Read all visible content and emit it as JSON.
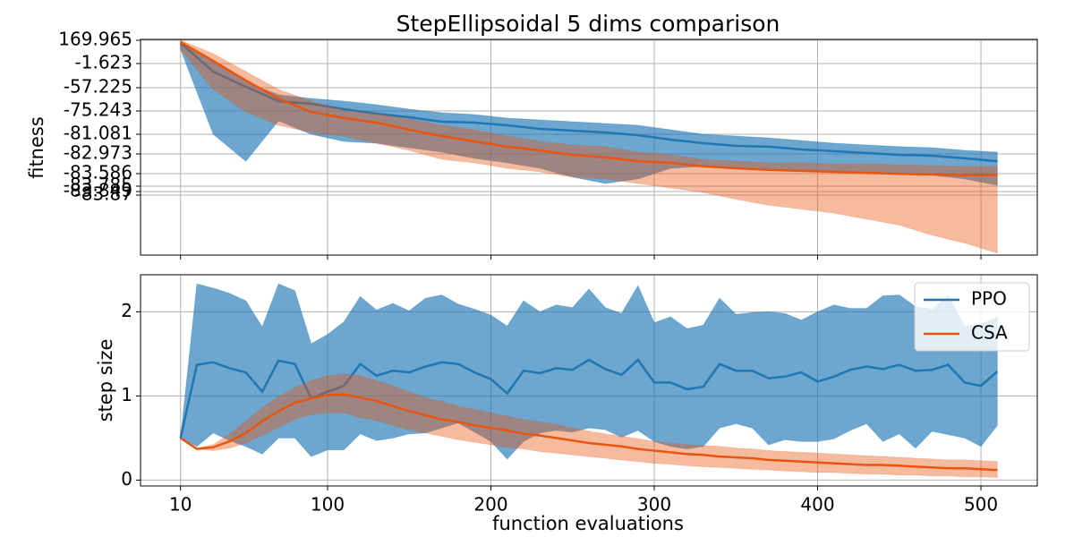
{
  "chart_data": [
    {
      "type": "line",
      "title": "StepEllipsoidal 5 dims comparison",
      "ylabel": "fitness",
      "x": [
        10,
        30,
        50,
        70,
        90,
        110,
        130,
        150,
        170,
        190,
        210,
        230,
        250,
        270,
        290,
        310,
        330,
        350,
        370,
        390,
        410,
        430,
        450,
        470,
        490,
        510
      ],
      "ylim": [
        -83.9,
        169.965
      ],
      "yticks": [
        169.965,
        -1.623,
        -57.225,
        -75.243,
        -81.081,
        -82.973,
        -83.586,
        -83.785,
        -83.849,
        -83.87
      ],
      "grid": true,
      "series": [
        {
          "color": "#1f77b4",
          "band_opacity": 0.65,
          "values": [
            150.2,
            -20.16,
            -55.17,
            -67.62,
            -69.7,
            -73.86,
            -75.92,
            -76.82,
            -77.94,
            -78.16,
            -78.83,
            -79.73,
            -80.18,
            -80.63,
            -81.17,
            -81.6,
            -81.94,
            -82.2,
            -82.28,
            -82.54,
            -82.71,
            -82.89,
            -83.0,
            -83.03,
            -83.11,
            -83.2
          ],
          "upper": [
            163.4,
            18.2,
            -44.87,
            -62.77,
            -65.54,
            -67.62,
            -70.39,
            -73.86,
            -75.69,
            -76.14,
            -77.04,
            -77.49,
            -77.94,
            -78.39,
            -78.83,
            -79.96,
            -81.08,
            -81.25,
            -81.43,
            -81.68,
            -81.94,
            -82.11,
            -82.28,
            -82.37,
            -82.63,
            -82.8
          ],
          "lower": [
            104.0,
            -81.08,
            -83.2,
            -77.71,
            -81.08,
            -81.77,
            -81.94,
            -82.37,
            -82.8,
            -83.11,
            -83.25,
            -83.42,
            -83.64,
            -83.742,
            -83.67,
            -83.42,
            -83.36,
            -83.42,
            -83.47,
            -83.47,
            -83.53,
            -83.56,
            -83.59,
            -83.61,
            -83.67,
            -83.771
          ]
        },
        {
          "color": "#e8550f",
          "band_opacity": 0.4,
          "values": [
            156.8,
            18.2,
            -40.75,
            -65.54,
            -75.47,
            -77.04,
            -78.16,
            -79.96,
            -81.25,
            -81.77,
            -82.28,
            -82.63,
            -83.0,
            -83.08,
            -83.2,
            -83.25,
            -83.36,
            -83.42,
            -83.47,
            -83.5,
            -83.53,
            -83.56,
            -83.59,
            -83.6,
            -83.61,
            -83.61
          ],
          "upper": [
            169.9,
            71.0,
            -20.16,
            -58.61,
            -67.62,
            -74.55,
            -75.92,
            -77.26,
            -78.83,
            -79.96,
            -81.25,
            -81.77,
            -82.11,
            -82.28,
            -82.8,
            -83.0,
            -83.14,
            -83.2,
            -83.25,
            -83.25,
            -83.28,
            -83.28,
            -83.31,
            -83.34,
            -83.36,
            -83.36
          ],
          "lower": [
            104.0,
            -58.61,
            -75.47,
            -78.83,
            -80.63,
            -81.25,
            -81.94,
            -82.63,
            -83.14,
            -83.25,
            -83.42,
            -83.53,
            -83.64,
            -83.67,
            -83.742,
            -83.806,
            -83.855,
            -83.872,
            -83.875,
            -83.877,
            -83.879,
            -83.882,
            -83.885,
            -83.89,
            -83.894,
            -83.899
          ]
        }
      ]
    },
    {
      "type": "line",
      "ylabel": "step size",
      "xlabel": "function evaluations",
      "x": [
        10,
        20,
        30,
        40,
        50,
        60,
        70,
        80,
        90,
        100,
        110,
        120,
        130,
        140,
        150,
        160,
        170,
        180,
        190,
        200,
        210,
        220,
        230,
        240,
        250,
        260,
        270,
        280,
        290,
        300,
        310,
        320,
        330,
        340,
        350,
        360,
        370,
        380,
        390,
        400,
        410,
        420,
        430,
        440,
        450,
        460,
        470,
        480,
        490,
        500,
        510
      ],
      "xlim": [
        -14.5,
        534.5
      ],
      "xticks": [
        10,
        100,
        200,
        300,
        400,
        500
      ],
      "ylim": [
        -0.07,
        2.44
      ],
      "yticks": [
        0,
        1,
        2
      ],
      "grid": true,
      "legend": "upper right",
      "series": [
        {
          "name": "PPO",
          "color": "#1f77b4",
          "band_opacity": 0.65,
          "values": [
            0.5,
            1.37,
            1.4,
            1.33,
            1.28,
            1.05,
            1.42,
            1.38,
            0.97,
            1.05,
            1.12,
            1.38,
            1.24,
            1.3,
            1.28,
            1.35,
            1.4,
            1.38,
            1.28,
            1.2,
            1.03,
            1.3,
            1.27,
            1.33,
            1.31,
            1.43,
            1.32,
            1.25,
            1.43,
            1.16,
            1.16,
            1.08,
            1.11,
            1.38,
            1.3,
            1.3,
            1.21,
            1.23,
            1.28,
            1.17,
            1.23,
            1.31,
            1.35,
            1.32,
            1.37,
            1.3,
            1.31,
            1.37,
            1.16,
            1.12,
            1.29
          ],
          "upper": [
            0.5,
            2.33,
            2.28,
            2.22,
            2.13,
            1.82,
            2.33,
            2.25,
            1.62,
            1.73,
            1.88,
            2.18,
            2.02,
            2.1,
            2.01,
            2.16,
            2.2,
            2.09,
            2.03,
            1.96,
            1.83,
            2.13,
            2.0,
            2.08,
            2.05,
            2.27,
            2.05,
            1.98,
            2.31,
            1.87,
            1.94,
            1.8,
            1.84,
            2.16,
            1.97,
            1.99,
            2.0,
            1.98,
            1.9,
            2.0,
            2.08,
            2.04,
            2.04,
            2.19,
            2.2,
            2.06,
            2.03,
            2.19,
            1.83,
            1.85,
            1.94
          ],
          "lower": [
            0.5,
            0.4,
            0.56,
            0.47,
            0.4,
            0.31,
            0.5,
            0.5,
            0.28,
            0.36,
            0.36,
            0.55,
            0.47,
            0.5,
            0.55,
            0.56,
            0.62,
            0.68,
            0.57,
            0.46,
            0.25,
            0.46,
            0.56,
            0.59,
            0.57,
            0.62,
            0.6,
            0.51,
            0.59,
            0.46,
            0.4,
            0.37,
            0.4,
            0.62,
            0.67,
            0.62,
            0.42,
            0.48,
            0.46,
            0.46,
            0.49,
            0.59,
            0.67,
            0.46,
            0.55,
            0.38,
            0.58,
            0.54,
            0.5,
            0.4,
            0.65
          ]
        },
        {
          "name": "CSA",
          "color": "#e8550f",
          "band_opacity": 0.4,
          "values": [
            0.5,
            0.37,
            0.39,
            0.46,
            0.56,
            0.7,
            0.82,
            0.92,
            0.97,
            1.01,
            1.02,
            0.98,
            0.94,
            0.88,
            0.82,
            0.77,
            0.72,
            0.69,
            0.65,
            0.62,
            0.59,
            0.55,
            0.53,
            0.5,
            0.47,
            0.44,
            0.42,
            0.4,
            0.37,
            0.35,
            0.33,
            0.31,
            0.3,
            0.28,
            0.27,
            0.26,
            0.24,
            0.23,
            0.22,
            0.21,
            0.2,
            0.19,
            0.18,
            0.18,
            0.17,
            0.16,
            0.15,
            0.14,
            0.14,
            0.13,
            0.12
          ],
          "upper": [
            0.5,
            0.38,
            0.42,
            0.55,
            0.7,
            0.86,
            0.99,
            1.1,
            1.18,
            1.24,
            1.26,
            1.24,
            1.18,
            1.12,
            1.05,
            0.98,
            0.93,
            0.88,
            0.84,
            0.8,
            0.76,
            0.72,
            0.69,
            0.66,
            0.62,
            0.58,
            0.55,
            0.52,
            0.49,
            0.46,
            0.44,
            0.42,
            0.41,
            0.4,
            0.38,
            0.37,
            0.35,
            0.34,
            0.33,
            0.32,
            0.31,
            0.3,
            0.29,
            0.28,
            0.27,
            0.26,
            0.25,
            0.24,
            0.24,
            0.23,
            0.22
          ],
          "lower": [
            0.5,
            0.37,
            0.35,
            0.38,
            0.44,
            0.53,
            0.63,
            0.72,
            0.78,
            0.8,
            0.8,
            0.74,
            0.71,
            0.65,
            0.6,
            0.56,
            0.52,
            0.48,
            0.45,
            0.42,
            0.39,
            0.37,
            0.34,
            0.32,
            0.3,
            0.28,
            0.26,
            0.24,
            0.22,
            0.2,
            0.19,
            0.17,
            0.16,
            0.15,
            0.14,
            0.13,
            0.12,
            0.11,
            0.1,
            0.09,
            0.09,
            0.08,
            0.07,
            0.07,
            0.06,
            0.06,
            0.05,
            0.05,
            0.04,
            0.04,
            0.03
          ]
        }
      ]
    }
  ]
}
